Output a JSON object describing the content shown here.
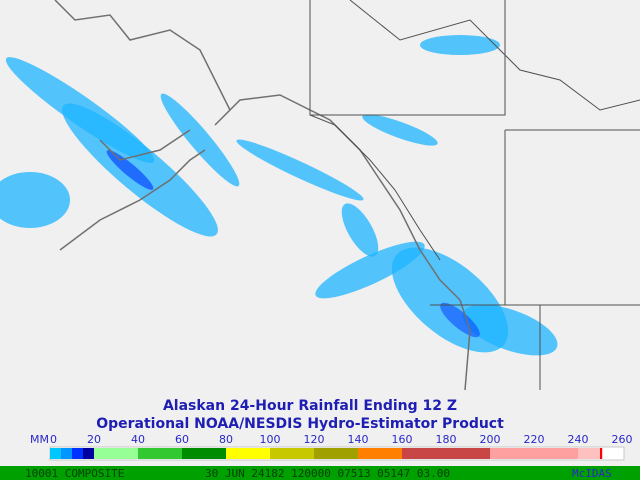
{
  "header": {
    "title": "Alaskan 24-Hour Rainfall  Ending 12 Z",
    "subtitle": "Operational NOAA/NESDIS  Hydro-Estimator Product"
  },
  "colorbar": {
    "unit": "MM",
    "ticks": [
      0,
      20,
      40,
      60,
      80,
      100,
      120,
      140,
      160,
      180,
      200,
      220,
      240,
      260
    ],
    "segments": [
      {
        "from": 0,
        "to": 5,
        "color": "#00c8ff"
      },
      {
        "from": 5,
        "to": 10,
        "color": "#0096ff"
      },
      {
        "from": 10,
        "to": 15,
        "color": "#0032ff"
      },
      {
        "from": 15,
        "to": 20,
        "color": "#0000a0"
      },
      {
        "from": 20,
        "to": 40,
        "color": "#96ff96"
      },
      {
        "from": 40,
        "to": 60,
        "color": "#32c832"
      },
      {
        "from": 60,
        "to": 80,
        "color": "#008c00"
      },
      {
        "from": 80,
        "to": 100,
        "color": "#ffff00"
      },
      {
        "from": 100,
        "to": 120,
        "color": "#c8c800"
      },
      {
        "from": 120,
        "to": 140,
        "color": "#a0a000"
      },
      {
        "from": 140,
        "to": 160,
        "color": "#ff8000"
      },
      {
        "from": 160,
        "to": 200,
        "color": "#c84646"
      },
      {
        "from": 200,
        "to": 240,
        "color": "#ffa0a0"
      },
      {
        "from": 240,
        "to": 250,
        "color": "#ffc0c0"
      },
      {
        "from": 250,
        "to": 251,
        "color": "#ff0000"
      }
    ]
  },
  "footer": {
    "left": "10001 COMPOSITE",
    "middle": "30 JUN 24182 120000 07513 05147 03.00",
    "right": "McIDAS"
  }
}
